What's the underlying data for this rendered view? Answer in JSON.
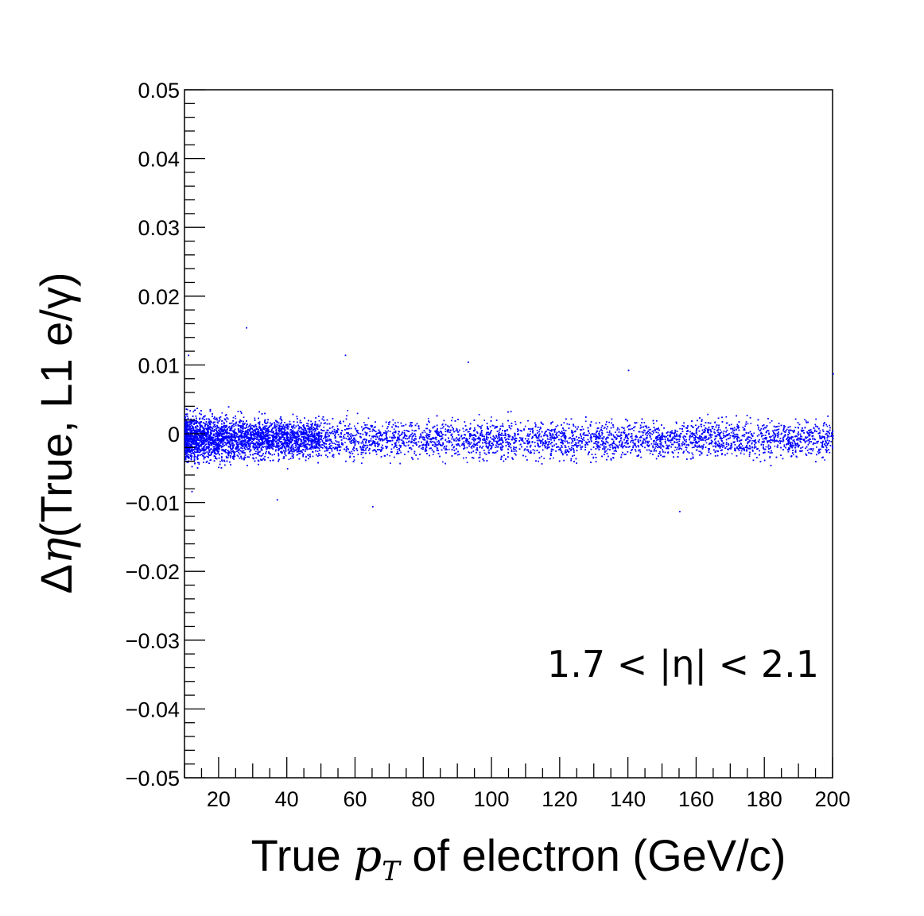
{
  "chart_data": {
    "type": "scatter",
    "xlabel": {
      "prefix": "True ",
      "var": "p",
      "sub": "T",
      "suffix": " of electron (GeV/c)"
    },
    "ylabel": {
      "prefix": "Δ",
      "var": "η",
      "suffix": "(True, L1 e/γ)"
    },
    "annotation": "1.7 < |η| < 2.1",
    "xlim": [
      10,
      200
    ],
    "ylim": [
      -0.05,
      0.05
    ],
    "xticks": [
      20,
      40,
      60,
      80,
      100,
      120,
      140,
      160,
      180,
      200
    ],
    "xtick_labels": [
      "20",
      "40",
      "60",
      "80",
      "100",
      "120",
      "140",
      "160",
      "180",
      "200"
    ],
    "yticks": [
      0.05,
      0.04,
      0.03,
      0.02,
      0.01,
      0,
      -0.01,
      -0.02,
      -0.03,
      -0.04,
      -0.05
    ],
    "ytick_labels": [
      "0.05",
      "0.04",
      "0.03",
      "0.02",
      "0.01",
      "0",
      "−0.01",
      "−0.02",
      "−0.03",
      "−0.04",
      "−0.05"
    ],
    "marker_color": "#0000ff",
    "band": {
      "center": [
        [
          10,
          -0.0005
        ],
        [
          60,
          -0.0007
        ],
        [
          120,
          -0.0008
        ],
        [
          200,
          -0.0005
        ]
      ],
      "halfwidth": [
        [
          10,
          0.0035
        ],
        [
          30,
          0.003
        ],
        [
          80,
          0.0027
        ],
        [
          200,
          0.0028
        ]
      ]
    },
    "outliers": [
      [
        28,
        0.0155
      ],
      [
        11,
        0.0115
      ],
      [
        57,
        0.0115
      ],
      [
        93,
        0.0105
      ],
      [
        140,
        0.0093
      ],
      [
        200,
        0.0088
      ],
      [
        65,
        -0.0105
      ],
      [
        155,
        -0.0112
      ],
      [
        37,
        -0.0095
      ],
      [
        12,
        -0.0083
      ]
    ]
  }
}
